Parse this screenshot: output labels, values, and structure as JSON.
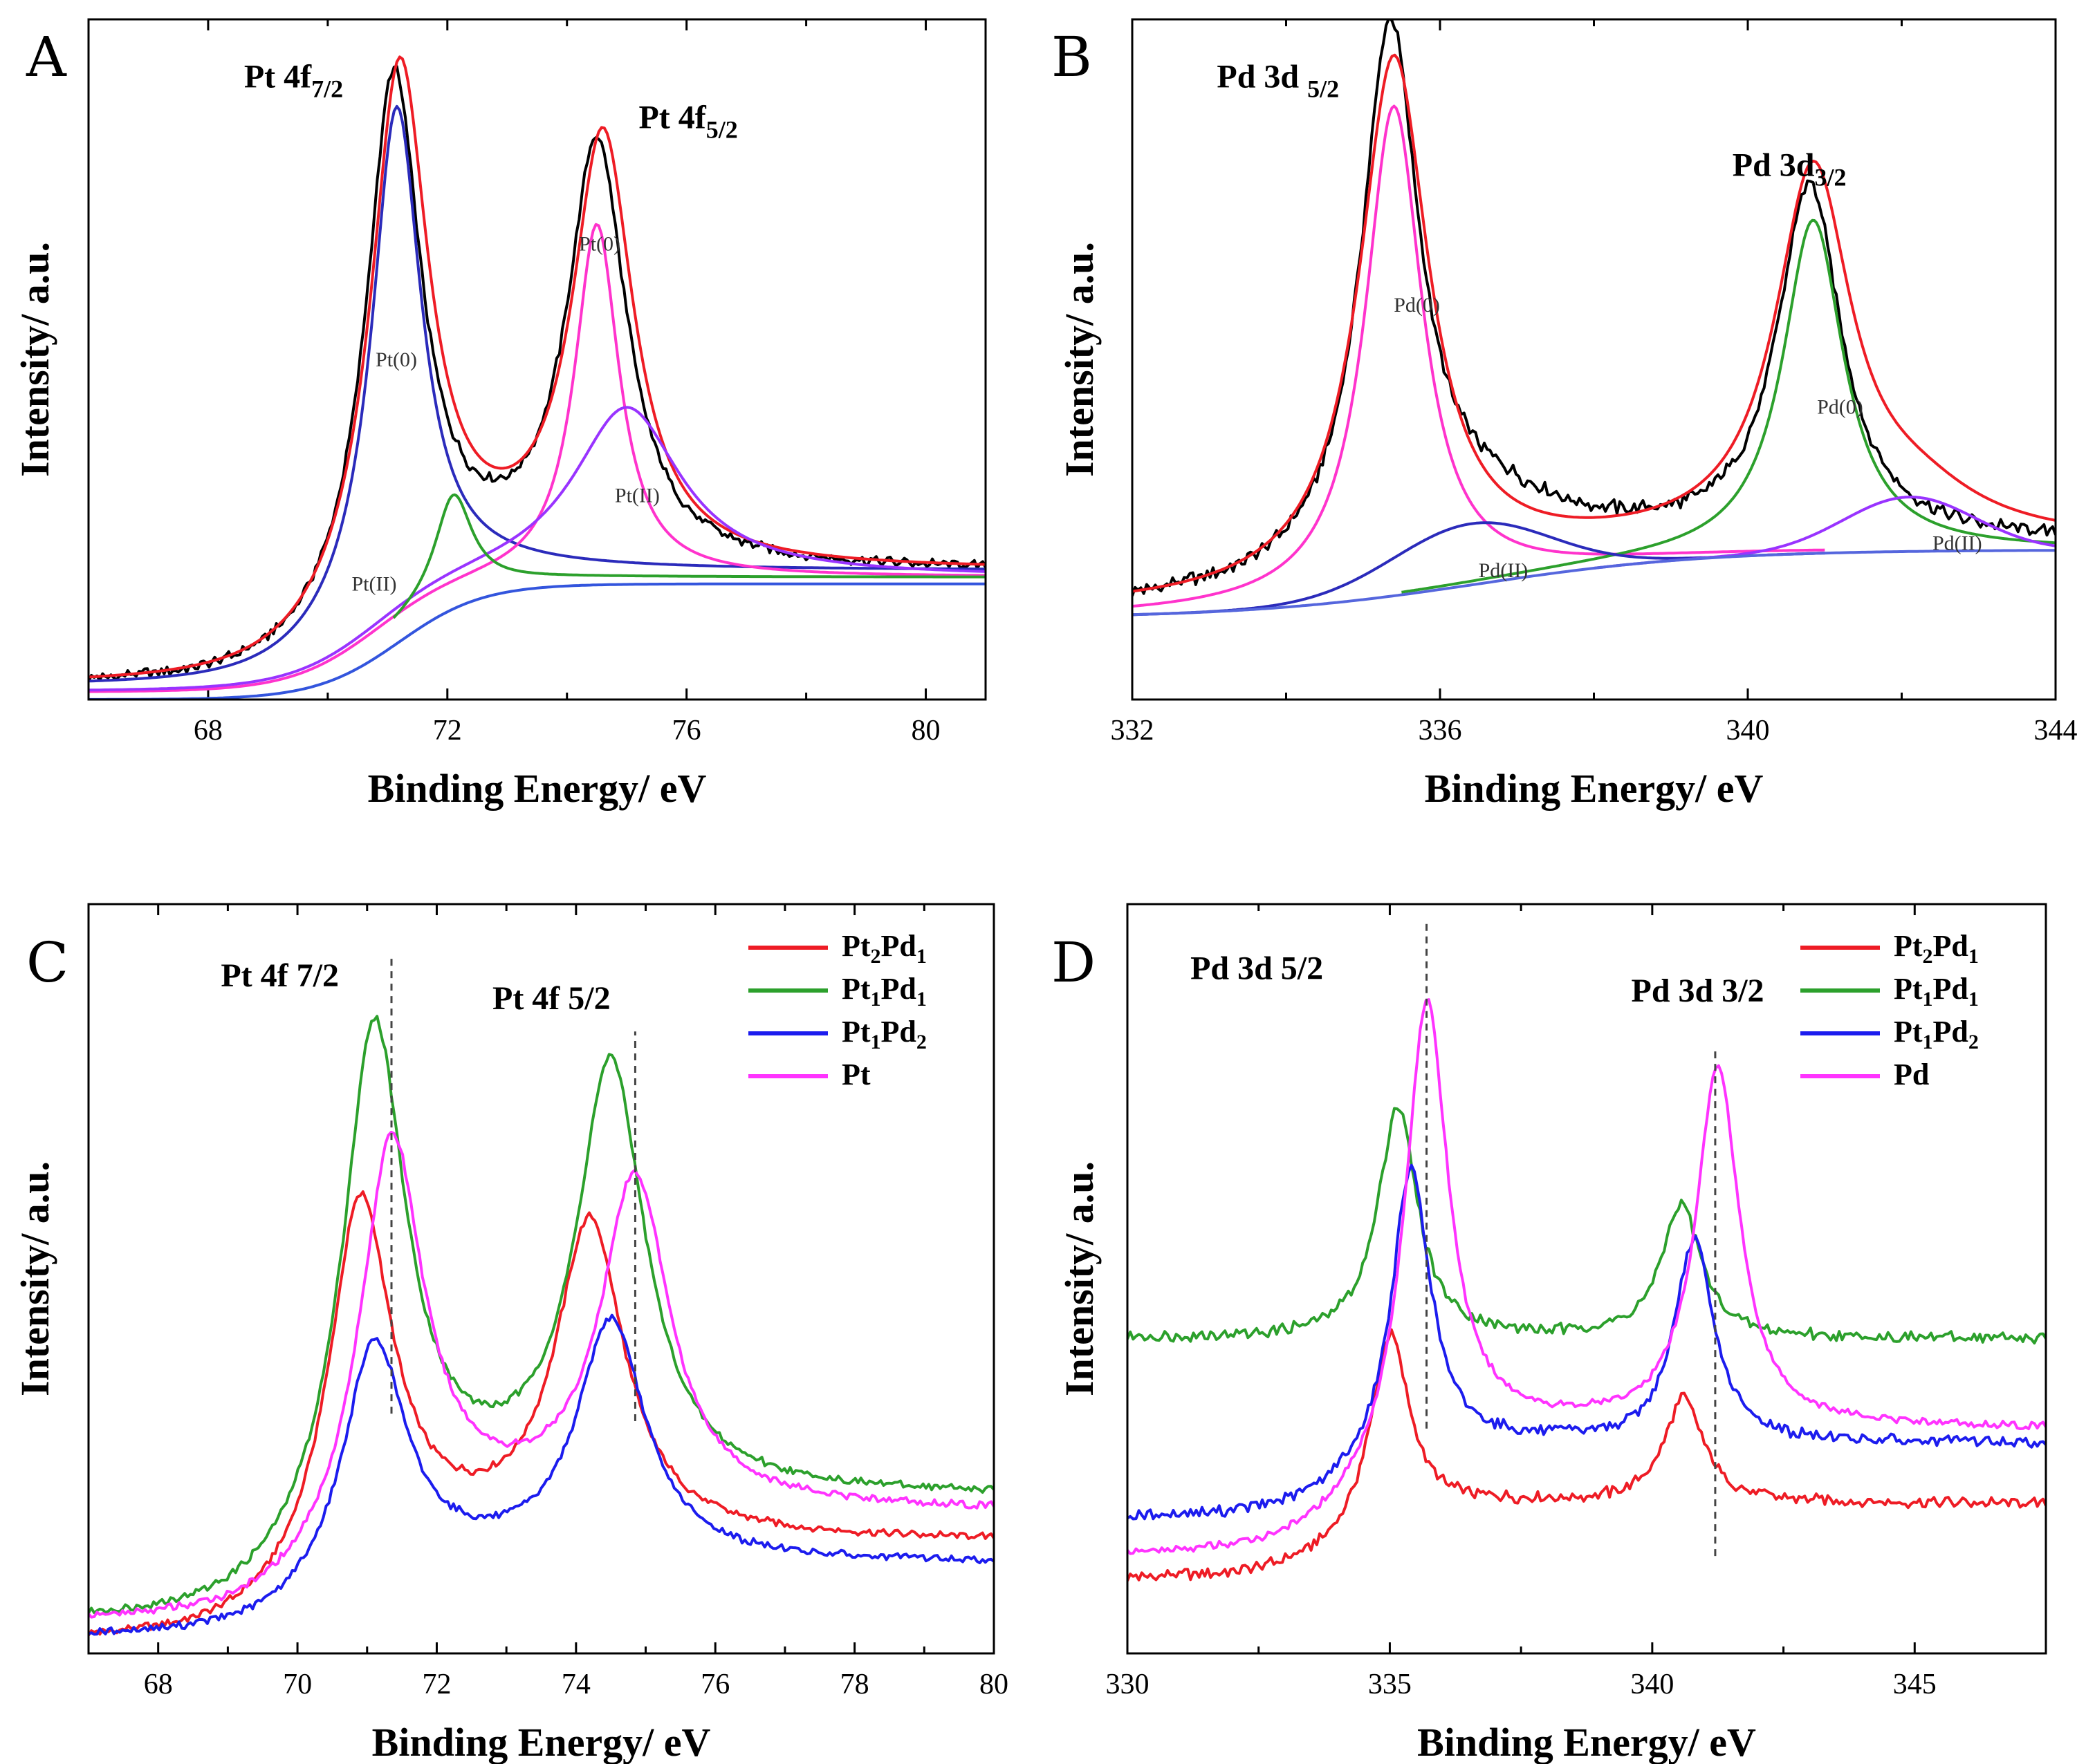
{
  "chart_data": [
    {
      "panel": "A",
      "type": "line",
      "xlabel": "Binding Energy/ eV",
      "ylabel": "Intensity/ a.u.",
      "xlim": [
        66,
        81
      ],
      "ylim": [
        0,
        1
      ],
      "xticks": [
        68,
        72,
        76,
        80
      ],
      "xtick_labels": [
        "68",
        "72",
        "76",
        "80"
      ],
      "peak_titles": [
        {
          "main": "Pt 4f",
          "sub": "7/2",
          "x": 68.6,
          "y": 0.9
        },
        {
          "main": "Pt 4f",
          "sub": "5/2",
          "x": 75.2,
          "y": 0.84
        }
      ],
      "component_labels": [
        {
          "text": "Pt(0)",
          "x": 70.8,
          "y": 0.49
        },
        {
          "text": "Pt(0)",
          "x": 74.2,
          "y": 0.66
        },
        {
          "text": "Pt(II)",
          "x": 74.8,
          "y": 0.29
        },
        {
          "text": "Pt(II)",
          "x": 70.4,
          "y": 0.16
        }
      ],
      "series": [
        {
          "name": "raw",
          "color": "#000000",
          "noise": 0.006,
          "baseline": [
            0.02,
            0.17,
            70.5,
            0.7
          ],
          "peaks": [
            [
              71.1,
              0.77,
              0.55,
              0
            ],
            [
              74.5,
              0.62,
              0.6,
              0
            ]
          ]
        },
        {
          "name": "fit",
          "color": "#ee1c25",
          "noise": 0,
          "baseline": [
            0.02,
            0.17,
            70.5,
            0.7
          ],
          "peaks": [
            [
              71.2,
              0.78,
              0.58,
              0
            ],
            [
              74.6,
              0.63,
              0.62,
              0
            ]
          ]
        },
        {
          "name": "Pt(0) 4f7/2",
          "color": "#2b2bbb",
          "noise": 0,
          "baseline": [
            0.02,
            0.17,
            70.5,
            0.7
          ],
          "peaks": [
            [
              71.15,
              0.73,
              0.5,
              0
            ]
          ]
        },
        {
          "name": "Pt(0) 4f5/2",
          "color": "#ff33cc",
          "noise": 0,
          "baseline": [
            0.01,
            0.17,
            70.8,
            0.7
          ],
          "peaks": [
            [
              74.5,
              0.52,
              0.45,
              0
            ]
          ]
        },
        {
          "name": "Pt(II) 4f5/2",
          "color": "#9933ff",
          "noise": 0,
          "baseline": [
            0.01,
            0.17,
            70.8,
            0.7
          ],
          "peaks": [
            [
              75.0,
              0.25,
              1.1,
              0
            ]
          ]
        },
        {
          "name": "Pt(II) 4f7/2",
          "color": "#2ca02c",
          "noise": 0,
          "baseline": [
            0.01,
            0.17,
            71.0,
            0.7
          ],
          "peaks": [
            [
              72.1,
              0.15,
              0.38,
              0
            ]
          ],
          "xrange": [
            71.1,
            81
          ]
        },
        {
          "name": "background",
          "color": "#3355dd",
          "noise": 0,
          "baseline": [
            0.0,
            0.17,
            71.2,
            0.7
          ],
          "peaks": []
        }
      ]
    },
    {
      "panel": "B",
      "type": "line",
      "xlabel": "Binding Energy/ eV",
      "ylabel": "Intensity/ a.u.",
      "xlim": [
        332,
        344
      ],
      "ylim": [
        0,
        1
      ],
      "xticks": [
        332,
        336,
        340,
        344
      ],
      "xtick_labels": [
        "332",
        "336",
        "340",
        "344"
      ],
      "peak_titles": [
        {
          "main": "Pd 3d ",
          "sub": "5/2",
          "x": 333.1,
          "y": 0.9
        },
        {
          "main": "Pd 3d",
          "sub": "3/2",
          "x": 339.8,
          "y": 0.77
        }
      ],
      "component_labels": [
        {
          "text": "Pd(0)",
          "x": 335.4,
          "y": 0.57
        },
        {
          "text": "Pd(0)",
          "x": 340.9,
          "y": 0.42
        },
        {
          "text": "Pd(II)",
          "x": 336.5,
          "y": 0.18
        },
        {
          "text": "Pd(II)",
          "x": 342.4,
          "y": 0.22
        }
      ],
      "series": [
        {
          "name": "raw",
          "color": "#000000",
          "noise": 0.008,
          "baseline": [
            0.13,
            0.1,
            336.0,
            1.5
          ],
          "peaks": [
            [
              335.35,
              0.78,
              0.45,
              0
            ],
            [
              340.8,
              0.52,
              0.5,
              0
            ],
            [
              336.5,
              0.08,
              1.5,
              0
            ]
          ]
        },
        {
          "name": "fit",
          "color": "#ee1c25",
          "noise": 0,
          "baseline": [
            0.13,
            0.1,
            336.0,
            1.5
          ],
          "peaks": [
            [
              335.4,
              0.77,
              0.55,
              0
            ],
            [
              340.85,
              0.54,
              0.6,
              0
            ],
            [
              342.2,
              0.05,
              1.0,
              0
            ]
          ]
        },
        {
          "name": "Pd(0) 3d5/2",
          "color": "#ff33cc",
          "noise": 0,
          "baseline": [
            0.12,
            0.1,
            336.5,
            1.5
          ],
          "peaks": [
            [
              335.4,
              0.72,
              0.45,
              0
            ]
          ],
          "xrange": [
            332,
            341
          ]
        },
        {
          "name": "Pd(0) 3d3/2",
          "color": "#2ca02c",
          "noise": 0,
          "baseline": [
            0.12,
            0.1,
            336.5,
            1.5
          ],
          "peaks": [
            [
              340.85,
              0.49,
              0.48,
              0
            ]
          ],
          "xrange": [
            335.5,
            344
          ]
        },
        {
          "name": "Pd(II) 3d5/2",
          "color": "#2b2bbb",
          "noise": 0,
          "baseline": [
            0.12,
            0.1,
            336.5,
            1.5
          ],
          "peaks": [
            [
              336.4,
              0.09,
              1.2,
              1
            ]
          ],
          "xrange": [
            332,
            341
          ]
        },
        {
          "name": "Pd(II) 3d3/2",
          "color": "#9933ff",
          "noise": 0,
          "baseline": [
            0.12,
            0.1,
            336.5,
            1.5
          ],
          "peaks": [
            [
              342.1,
              0.08,
              1.0,
              1
            ]
          ],
          "xrange": [
            338,
            344
          ]
        },
        {
          "name": "background",
          "color": "#5566dd",
          "noise": 0,
          "baseline": [
            0.12,
            0.1,
            336.5,
            1.5
          ],
          "peaks": []
        }
      ]
    },
    {
      "panel": "C",
      "type": "line",
      "xlabel": "Binding Energy/ eV",
      "ylabel": "Intensity/ a.u.",
      "xlim": [
        67,
        80
      ],
      "ylim": [
        0,
        1
      ],
      "xticks": [
        68,
        70,
        72,
        74,
        76,
        78,
        80
      ],
      "xtick_labels": [
        "68",
        "70",
        "72",
        "74",
        "76",
        "78",
        "80"
      ],
      "peak_titles": [
        {
          "main": "Pt 4f 7/2",
          "sub": "",
          "x": 68.9,
          "y": 0.89
        },
        {
          "main": "Pt 4f 5/2",
          "sub": "",
          "x": 72.8,
          "y": 0.86
        }
      ],
      "ref_lines": [
        {
          "x": 71.35,
          "y0": 0.32,
          "y1": 0.93
        },
        {
          "x": 74.85,
          "y0": 0.31,
          "y1": 0.83
        }
      ],
      "legend": [
        {
          "main": "Pt",
          "sub1": "2",
          "mid": "Pd",
          "sub2": "1",
          "color": "#ee1c25"
        },
        {
          "main": "Pt",
          "sub1": "1",
          "mid": "Pd",
          "sub2": "1",
          "color": "#2ca02c"
        },
        {
          "main": "Pt",
          "sub1": "1",
          "mid": "Pd",
          "sub2": "2",
          "color": "#1c1cee"
        },
        {
          "main": "Pt",
          "sub1": "",
          "mid": "",
          "sub2": "",
          "color": "#ff33ff"
        }
      ],
      "series": [
        {
          "name": "Pt2Pd1",
          "color": "#ee1c25",
          "noise": 0.004,
          "baseline": [
            0.015,
            0.135,
            70.4,
            0.6
          ],
          "peaks": [
            [
              70.9,
              0.49,
              0.55,
              0
            ],
            [
              74.2,
              0.42,
              0.6,
              0
            ]
          ]
        },
        {
          "name": "Pt1Pd1",
          "color": "#2ca02c",
          "noise": 0.004,
          "baseline": [
            0.04,
            0.17,
            70.4,
            0.6
          ],
          "peaks": [
            [
              71.1,
              0.66,
              0.55,
              0
            ],
            [
              74.5,
              0.57,
              0.6,
              0
            ]
          ]
        },
        {
          "name": "Pt1Pd2",
          "color": "#1c1cee",
          "noise": 0.004,
          "baseline": [
            0.02,
            0.1,
            70.6,
            0.6
          ],
          "peaks": [
            [
              71.1,
              0.32,
              0.55,
              0
            ],
            [
              74.5,
              0.32,
              0.6,
              0
            ]
          ]
        },
        {
          "name": "Pt",
          "color": "#ff33ff",
          "noise": 0.004,
          "baseline": [
            0.04,
            0.15,
            70.7,
            0.6
          ],
          "peaks": [
            [
              71.35,
              0.53,
              0.55,
              0
            ],
            [
              74.85,
              0.44,
              0.6,
              0
            ]
          ]
        }
      ]
    },
    {
      "panel": "D",
      "type": "line",
      "xlabel": "Binding Energy/ eV",
      "ylabel": "Intensity/ a.u.",
      "xlim": [
        330,
        347.5
      ],
      "ylim": [
        0,
        1
      ],
      "xticks": [
        330,
        335,
        340,
        345
      ],
      "xtick_labels": [
        "330",
        "335",
        "340",
        "345"
      ],
      "peak_titles": [
        {
          "main": "Pd 3d 5/2",
          "sub": "",
          "x": 331.2,
          "y": 0.9
        },
        {
          "main": "Pd 3d 3/2",
          "sub": "",
          "x": 339.6,
          "y": 0.87
        }
      ],
      "ref_lines": [
        {
          "x": 335.7,
          "y0": 0.3,
          "y1": 0.98
        },
        {
          "x": 341.2,
          "y0": 0.13,
          "y1": 0.81
        }
      ],
      "legend": [
        {
          "main": "Pt",
          "sub1": "2",
          "mid": "Pd",
          "sub2": "1",
          "color": "#ee1c25"
        },
        {
          "main": "Pt",
          "sub1": "1",
          "mid": "Pd",
          "sub2": "1",
          "color": "#2ca02c"
        },
        {
          "main": "Pt",
          "sub1": "1",
          "mid": "Pd",
          "sub2": "2",
          "color": "#1c1cee"
        },
        {
          "main": "Pd",
          "sub1": "",
          "mid": "",
          "sub2": "",
          "color": "#ff33ff"
        }
      ],
      "series": [
        {
          "name": "Pt2Pd1",
          "color": "#ee1c25",
          "noise": 0.006,
          "baseline": [
            0.1,
            0.1,
            334.5,
            0.8
          ],
          "peaks": [
            [
              335.0,
              0.26,
              0.45,
              0
            ],
            [
              340.6,
              0.14,
              0.45,
              0
            ]
          ]
        },
        {
          "name": "Pt1Pd1",
          "color": "#2ca02c",
          "noise": 0.006,
          "baseline": [
            0.42,
            0.0,
            334.5,
            0.8
          ],
          "peaks": [
            [
              335.15,
              0.31,
              0.45,
              0
            ],
            [
              340.55,
              0.18,
              0.45,
              0
            ]
          ]
        },
        {
          "name": "Pt1Pd2",
          "color": "#1c1cee",
          "noise": 0.006,
          "baseline": [
            0.18,
            0.1,
            334.5,
            0.8
          ],
          "peaks": [
            [
              335.4,
              0.39,
              0.45,
              0
            ],
            [
              340.8,
              0.27,
              0.45,
              0
            ]
          ]
        },
        {
          "name": "Pd",
          "color": "#ff33ff",
          "noise": 0.004,
          "baseline": [
            0.13,
            0.17,
            334.8,
            0.8
          ],
          "peaks": [
            [
              335.7,
              0.61,
              0.5,
              0
            ],
            [
              341.25,
              0.48,
              0.5,
              0
            ]
          ]
        }
      ]
    }
  ]
}
